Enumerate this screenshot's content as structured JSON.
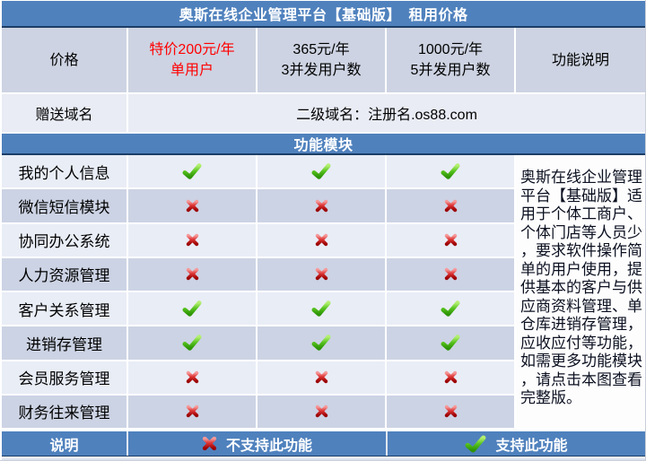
{
  "title": "奥斯在线企业管理平台【基础版】　租用价格",
  "price_row": {
    "label": "价格",
    "plans": [
      {
        "line1": "特价200元/年",
        "line2": "单用户",
        "highlight": true
      },
      {
        "line1": "365元/年",
        "line2": "3并发用户数",
        "highlight": false
      },
      {
        "line1": "1000元/年",
        "line2": "5并发用户数",
        "highlight": false
      }
    ],
    "desc_header": "功能说明"
  },
  "domain_row": {
    "label": "赠送域名",
    "value": "二级域名：注册名.os88.com"
  },
  "section_header": "功能模块",
  "features": [
    {
      "label": "我的个人信息",
      "support": [
        true,
        true,
        true
      ]
    },
    {
      "label": "微信短信模块",
      "support": [
        false,
        false,
        false
      ]
    },
    {
      "label": "协同办公系统",
      "support": [
        false,
        false,
        false
      ]
    },
    {
      "label": "人力资源管理",
      "support": [
        false,
        false,
        false
      ]
    },
    {
      "label": "客户关系管理",
      "support": [
        true,
        true,
        true
      ]
    },
    {
      "label": "进销存管理",
      "support": [
        true,
        true,
        true
      ]
    },
    {
      "label": "会员服务管理",
      "support": [
        false,
        false,
        false
      ]
    },
    {
      "label": "财务往来管理",
      "support": [
        false,
        false,
        false
      ]
    }
  ],
  "description": "奥斯在线企业管理平台【基础版】适用于个体工商户、个体门店等人员少，要求软件操作简单的用户使用，提供基本的客户与供应商资料管理、单仓库进销存管理，应收应付等功能，如需更多功能模块，请点击本图查看完整版。",
  "legend": {
    "label": "说明",
    "not_supported": "不支持此功能",
    "supported": "支持此功能"
  },
  "icons": {
    "supported": "check-icon",
    "not_supported": "cross-icon"
  },
  "colors": {
    "accent_blue": "#4f81bd",
    "dark_border": "#1c3e66",
    "price_red": "#ff0000",
    "check_green": "#3aa60f",
    "cross_red": "#c00000",
    "row_light": "#e9edf6",
    "row_dark": "#ccd3e4",
    "price_row_bg": "#cdd3e2"
  }
}
